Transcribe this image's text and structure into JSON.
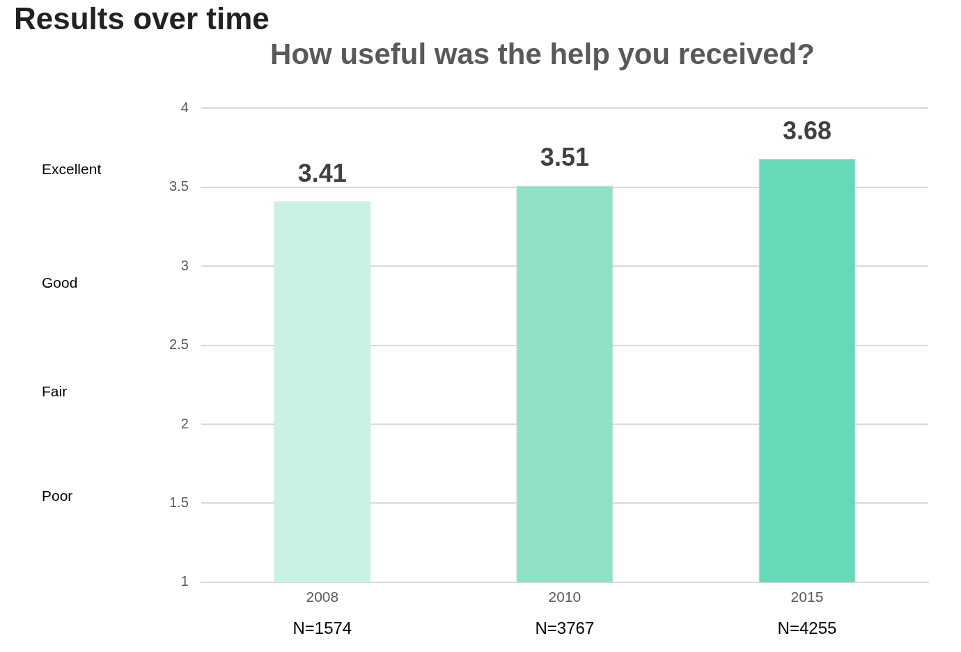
{
  "chart_data": {
    "type": "bar",
    "title": "How useful was the help you received?",
    "categories": [
      "2008",
      "2010",
      "2015"
    ],
    "values": [
      3.41,
      3.51,
      3.68
    ],
    "colors": [
      "#c8f2e4",
      "#8fe0c4",
      "#66d9b8"
    ],
    "ylim": [
      1,
      4
    ],
    "yticks": [
      1,
      1.5,
      2,
      2.5,
      3,
      3.5,
      4
    ],
    "grid": "y",
    "legend": false,
    "data_labels": true,
    "annotations": [
      "Results over time",
      "Excellent",
      "Good",
      "Fair",
      "Poor",
      "N=1574",
      "N=3767",
      "N=4255"
    ]
  }
}
